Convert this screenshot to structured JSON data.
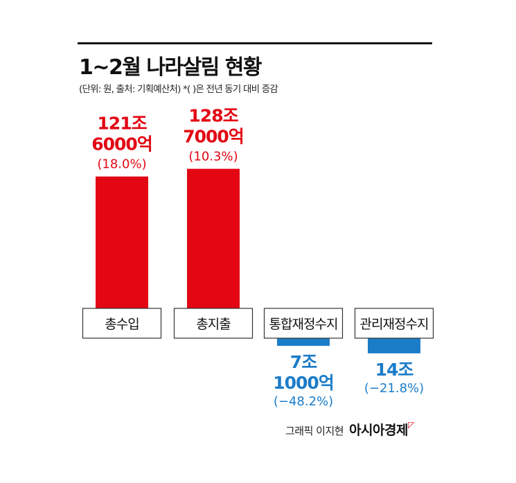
{
  "header": {
    "title": "1~2월 나라살림 현황",
    "subtitle": "(단위: 원, 출처: 기획예산처)   *(  )은 전년 동기 대비 증감"
  },
  "credit": {
    "text": "그래픽 이지현",
    "brand": "아시아경제"
  },
  "colors": {
    "positive": "#e30613",
    "negative": "#1b7cc8"
  },
  "chart_data": {
    "type": "bar",
    "unit": "조 원",
    "categories": [
      "총수입",
      "총지출",
      "통합재정수지",
      "관리재정수지"
    ],
    "values": [
      121.6,
      128.7,
      -7.1,
      -14
    ],
    "value_labels": [
      [
        "121조",
        "6000억"
      ],
      [
        "128조",
        "7000억"
      ],
      [
        "7조",
        "1000억"
      ],
      [
        "14조"
      ]
    ],
    "change_labels": [
      "(18.0%)",
      "(10.3%)",
      "(−48.2%)",
      "(−21.8%)"
    ]
  }
}
